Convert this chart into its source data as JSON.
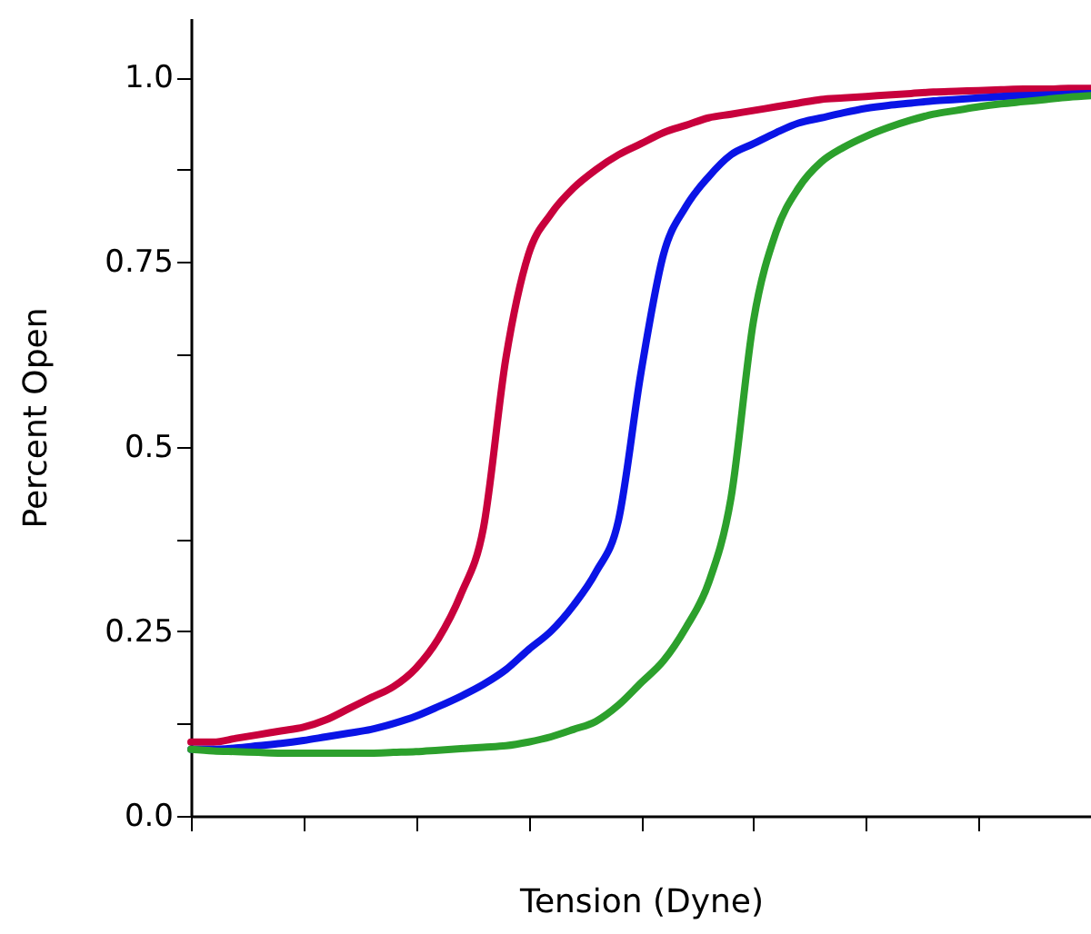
{
  "chart_data": {
    "type": "line",
    "xlabel": "Tension (Dyne)",
    "ylabel": "Percent Open",
    "categories": [
      null,
      null,
      null,
      null,
      null,
      null,
      null,
      null,
      null,
      null,
      null,
      null,
      null,
      null,
      null,
      null,
      null,
      null,
      null,
      null,
      null,
      null,
      null,
      null,
      null,
      null,
      null,
      null,
      null,
      null,
      null,
      null,
      null,
      null,
      null,
      null,
      null,
      null,
      null,
      null,
      null
    ],
    "ylim": [
      0,
      1.08
    ],
    "yticks": [
      {
        "value": 0,
        "label": "0.0"
      },
      {
        "value": 0.125,
        "label": null
      },
      0.25,
      {
        "value": 0.375,
        "label": null
      },
      0.5,
      {
        "value": 0.625,
        "label": null
      },
      0.75,
      {
        "value": 0.875,
        "label": null
      },
      {
        "value": 1,
        "label": "1.0"
      }
    ],
    "grid": false,
    "marker": "none",
    "line_style": "solid",
    "series": [
      {
        "color": "#c8003c",
        "values": [
          0.1,
          0.1,
          0.105,
          0.11,
          0.115,
          0.12,
          0.13,
          0.145,
          0.16,
          0.175,
          0.2,
          0.24,
          0.3,
          0.39,
          0.62,
          0.76,
          0.815,
          0.85,
          0.875,
          0.895,
          0.91,
          0.925,
          0.935,
          0.945,
          0.95,
          0.955,
          0.96,
          0.965,
          0.97,
          0.972,
          0.974,
          0.976,
          0.978,
          0.98,
          0.981,
          0.982,
          0.983,
          0.984,
          0.984,
          0.985,
          0.985
        ]
      },
      {
        "color": "#0a14e6",
        "values": [
          0.09,
          0.09,
          0.092,
          0.095,
          0.098,
          0.102,
          0.107,
          0.112,
          0.117,
          0.125,
          0.135,
          0.148,
          0.162,
          0.178,
          0.198,
          0.225,
          0.25,
          0.285,
          0.33,
          0.4,
          0.6,
          0.76,
          0.825,
          0.865,
          0.895,
          0.91,
          0.925,
          0.938,
          0.945,
          0.952,
          0.958,
          0.962,
          0.965,
          0.968,
          0.97,
          0.972,
          0.974,
          0.975,
          0.976,
          0.977,
          0.978
        ]
      },
      {
        "color": "#2ca02c",
        "values": [
          0.09,
          0.088,
          0.087,
          0.086,
          0.085,
          0.085,
          0.085,
          0.085,
          0.085,
          0.086,
          0.087,
          0.089,
          0.091,
          0.093,
          0.095,
          0.1,
          0.107,
          0.117,
          0.128,
          0.15,
          0.18,
          0.21,
          0.255,
          0.315,
          0.43,
          0.67,
          0.79,
          0.85,
          0.885,
          0.905,
          0.92,
          0.932,
          0.942,
          0.95,
          0.955,
          0.96,
          0.964,
          0.967,
          0.97,
          0.973,
          0.975
        ]
      }
    ]
  }
}
